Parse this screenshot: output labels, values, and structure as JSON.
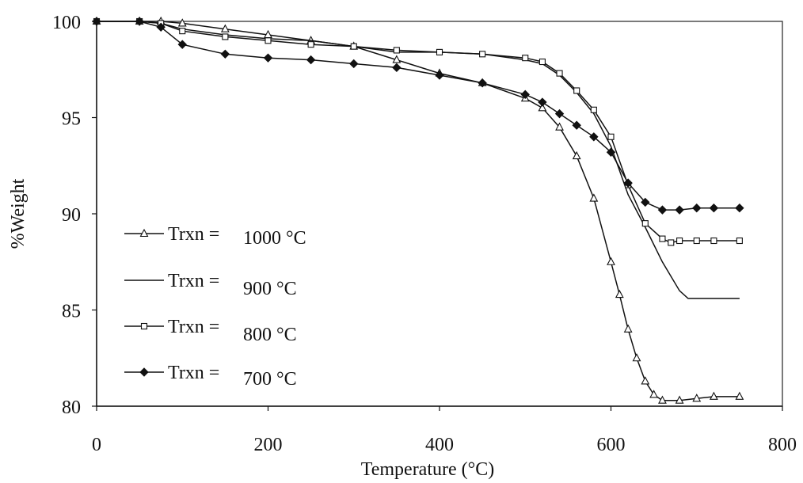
{
  "chart_data": {
    "type": "line",
    "xlabel": "Temperature (°C)",
    "ylabel": "%Weight",
    "xlim": [
      0,
      800
    ],
    "ylim": [
      80,
      100
    ],
    "x_ticks": [
      "0",
      "200",
      "400",
      "600",
      "800"
    ],
    "y_ticks": [
      "80",
      "85",
      "90",
      "95",
      "100"
    ],
    "grid": false,
    "legend_position": "left",
    "series": [
      {
        "name": "Trxn = 1000 °C",
        "marker": "triangle",
        "x": [
          0,
          50,
          75,
          100,
          150,
          200,
          250,
          300,
          350,
          400,
          450,
          500,
          520,
          540,
          560,
          580,
          600,
          610,
          620,
          630,
          640,
          650,
          660,
          680,
          700,
          720,
          750
        ],
        "y": [
          100,
          100,
          100,
          99.9,
          99.6,
          99.3,
          99,
          98.7,
          98,
          97.3,
          96.8,
          96,
          95.5,
          94.5,
          93,
          90.8,
          87.5,
          85.8,
          84,
          82.5,
          81.3,
          80.6,
          80.3,
          80.3,
          80.4,
          80.5,
          80.5
        ]
      },
      {
        "name": "Trxn = 900 °C",
        "marker": "none",
        "x": [
          0,
          50,
          75,
          100,
          150,
          200,
          250,
          300,
          350,
          400,
          450,
          500,
          520,
          540,
          560,
          580,
          600,
          620,
          640,
          660,
          680,
          690,
          700,
          720,
          750
        ],
        "y": [
          100,
          100,
          99.9,
          99.6,
          99.3,
          99.1,
          99,
          98.7,
          98.4,
          98.4,
          98.3,
          98,
          97.8,
          97.2,
          96.3,
          95.2,
          93.5,
          91,
          89.3,
          87.5,
          86,
          85.6,
          85.6,
          85.6,
          85.6
        ]
      },
      {
        "name": "Trxn = 800 °C",
        "marker": "square",
        "x": [
          0,
          50,
          75,
          100,
          150,
          200,
          250,
          300,
          350,
          400,
          450,
          500,
          520,
          540,
          560,
          580,
          600,
          620,
          640,
          660,
          670,
          680,
          700,
          720,
          750
        ],
        "y": [
          100,
          100,
          99.9,
          99.5,
          99.2,
          99,
          98.8,
          98.7,
          98.5,
          98.4,
          98.3,
          98.1,
          97.9,
          97.3,
          96.4,
          95.4,
          94,
          91.5,
          89.5,
          88.7,
          88.5,
          88.6,
          88.6,
          88.6,
          88.6
        ]
      },
      {
        "name": "Trxn = 700 °C",
        "marker": "diamond",
        "x": [
          0,
          50,
          75,
          100,
          150,
          200,
          250,
          300,
          350,
          400,
          450,
          500,
          520,
          540,
          560,
          580,
          600,
          620,
          640,
          660,
          680,
          700,
          720,
          750
        ],
        "y": [
          100,
          100,
          99.7,
          98.8,
          98.3,
          98.1,
          98,
          97.8,
          97.6,
          97.2,
          96.8,
          96.2,
          95.8,
          95.2,
          94.6,
          94,
          93.2,
          91.6,
          90.6,
          90.2,
          90.2,
          90.3,
          90.3,
          90.3
        ]
      }
    ],
    "legend": [
      {
        "prefix": "Trxn =",
        "value": "1000 °C"
      },
      {
        "prefix": "Trxn =",
        "value": "900 °C"
      },
      {
        "prefix": "Trxn =",
        "value": "800 °C"
      },
      {
        "prefix": "Trxn =",
        "value": "700 °C"
      }
    ]
  }
}
